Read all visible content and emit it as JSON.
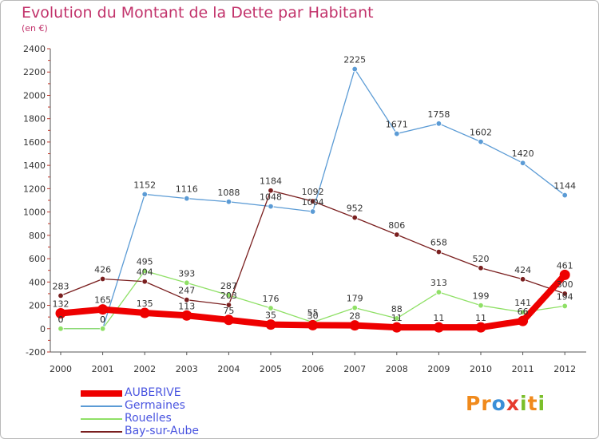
{
  "header": {
    "title": "Evolution du Montant de la Dette par Habitant",
    "subtitle": "(en €)"
  },
  "logo": {
    "text": "Proxiti",
    "letters": [
      {
        "ch": "P",
        "color": "#f08a1c"
      },
      {
        "ch": "r",
        "color": "#f08a1c"
      },
      {
        "ch": "o",
        "color": "#3a8fd8"
      },
      {
        "ch": "x",
        "color": "#e63b2e"
      },
      {
        "ch": "i",
        "color": "#7bbf2a"
      },
      {
        "ch": "t",
        "color": "#f08a1c"
      },
      {
        "ch": "i",
        "color": "#7bbf2a"
      }
    ]
  },
  "chart_data": {
    "type": "line",
    "title": "Evolution du Montant de la Dette par Habitant",
    "subtitle": "(en €)",
    "xlabel": "",
    "ylabel": "",
    "x": [
      "2000",
      "2001",
      "2002",
      "2003",
      "2004",
      "2005",
      "2006",
      "2007",
      "2008",
      "2009",
      "2010",
      "2011",
      "2012"
    ],
    "ylim": [
      -200,
      2400
    ],
    "yticks": [
      -200,
      0,
      200,
      400,
      600,
      800,
      1000,
      1200,
      1400,
      1600,
      1800,
      2000,
      2200,
      2400
    ],
    "grid": false,
    "legend_position": "bottom-left",
    "series": [
      {
        "name": "AUBERIVE",
        "color": "#ee0000",
        "values": [
          132,
          165,
          135,
          113,
          75,
          35,
          30,
          28,
          11,
          11,
          11,
          66,
          461
        ]
      },
      {
        "name": "Germaines",
        "color": "#5b9bd5",
        "values": [
          0,
          0,
          1152,
          1116,
          1088,
          1048,
          1004,
          2225,
          1671,
          1758,
          1602,
          1420,
          1144
        ]
      },
      {
        "name": "Rouelles",
        "color": "#8fe066",
        "values": [
          0,
          0,
          495,
          393,
          287,
          176,
          55,
          179,
          88,
          313,
          199,
          141,
          194
        ]
      },
      {
        "name": "Bay-sur-Aube",
        "color": "#7a1f1f",
        "values": [
          283,
          426,
          404,
          247,
          203,
          1184,
          1092,
          952,
          806,
          658,
          520,
          424,
          300
        ]
      }
    ]
  }
}
